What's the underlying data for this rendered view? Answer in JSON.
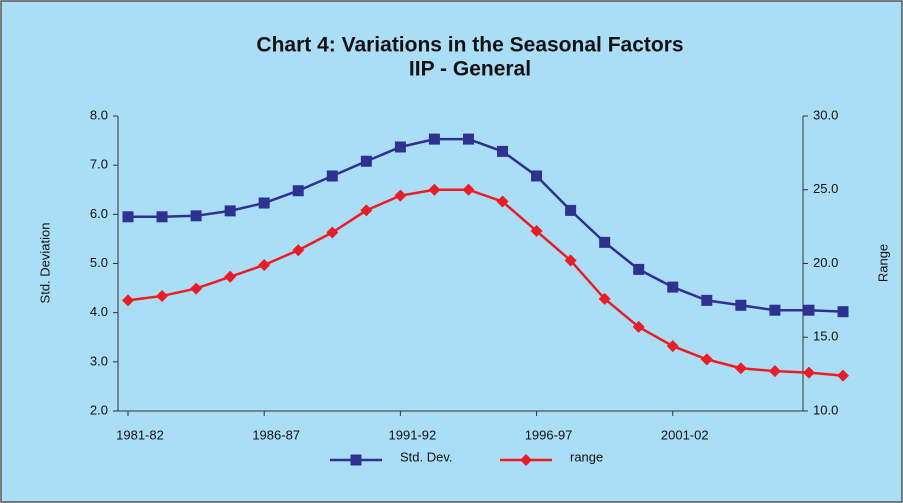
{
  "chart_data": {
    "type": "line",
    "title": "Chart 4: Variations in the Seasonal  Factors",
    "subtitle": "IIP - General",
    "y_label": "Std. Deviation",
    "y2_label": "Range",
    "categories": [
      "1981-82",
      null,
      null,
      null,
      "1986-87",
      null,
      null,
      null,
      "1991-92",
      null,
      null,
      null,
      "1996-97",
      null,
      null,
      null,
      "2001-02",
      null,
      null,
      null,
      null,
      null
    ],
    "series": [
      {
        "name": "Std. Dev.",
        "color": "#2e3192",
        "marker": "square",
        "values": [
          5.95,
          5.95,
          5.97,
          6.07,
          6.23,
          6.48,
          6.78,
          7.08,
          7.37,
          7.53,
          7.53,
          7.28,
          6.78,
          6.08,
          5.43,
          4.88,
          4.52,
          4.25,
          4.15,
          4.05,
          4.05,
          4.02
        ]
      },
      {
        "name": "range",
        "color": "#ed1c24",
        "marker": "diamond",
        "axis": "y2",
        "values": [
          17.5,
          17.8,
          18.3,
          19.1,
          19.9,
          20.9,
          22.1,
          23.6,
          24.6,
          25.0,
          25.0,
          24.2,
          22.2,
          20.2,
          17.6,
          15.7,
          14.4,
          13.5,
          12.9,
          12.7,
          12.6,
          12.4
        ]
      }
    ],
    "ylim": [
      2,
      8
    ],
    "yticks": [
      {
        "value": 2,
        "label": "2.0"
      },
      {
        "value": 3,
        "label": "3.0"
      },
      {
        "value": 4,
        "label": "4.0"
      },
      {
        "value": 5,
        "label": "5.0"
      },
      {
        "value": 6,
        "label": "6.0"
      },
      {
        "value": 7,
        "label": "7.0"
      },
      {
        "value": 8,
        "label": "8.0"
      }
    ],
    "y2lim": [
      10,
      30
    ],
    "y2ticks": [
      {
        "value": 10,
        "label": "10.0"
      },
      {
        "value": 15,
        "label": "15.0"
      },
      {
        "value": 20,
        "label": "20.0"
      },
      {
        "value": 25,
        "label": "25.0"
      },
      {
        "value": 30,
        "label": "30.0"
      }
    ],
    "legend": "bottom",
    "background": "#a9def6"
  }
}
